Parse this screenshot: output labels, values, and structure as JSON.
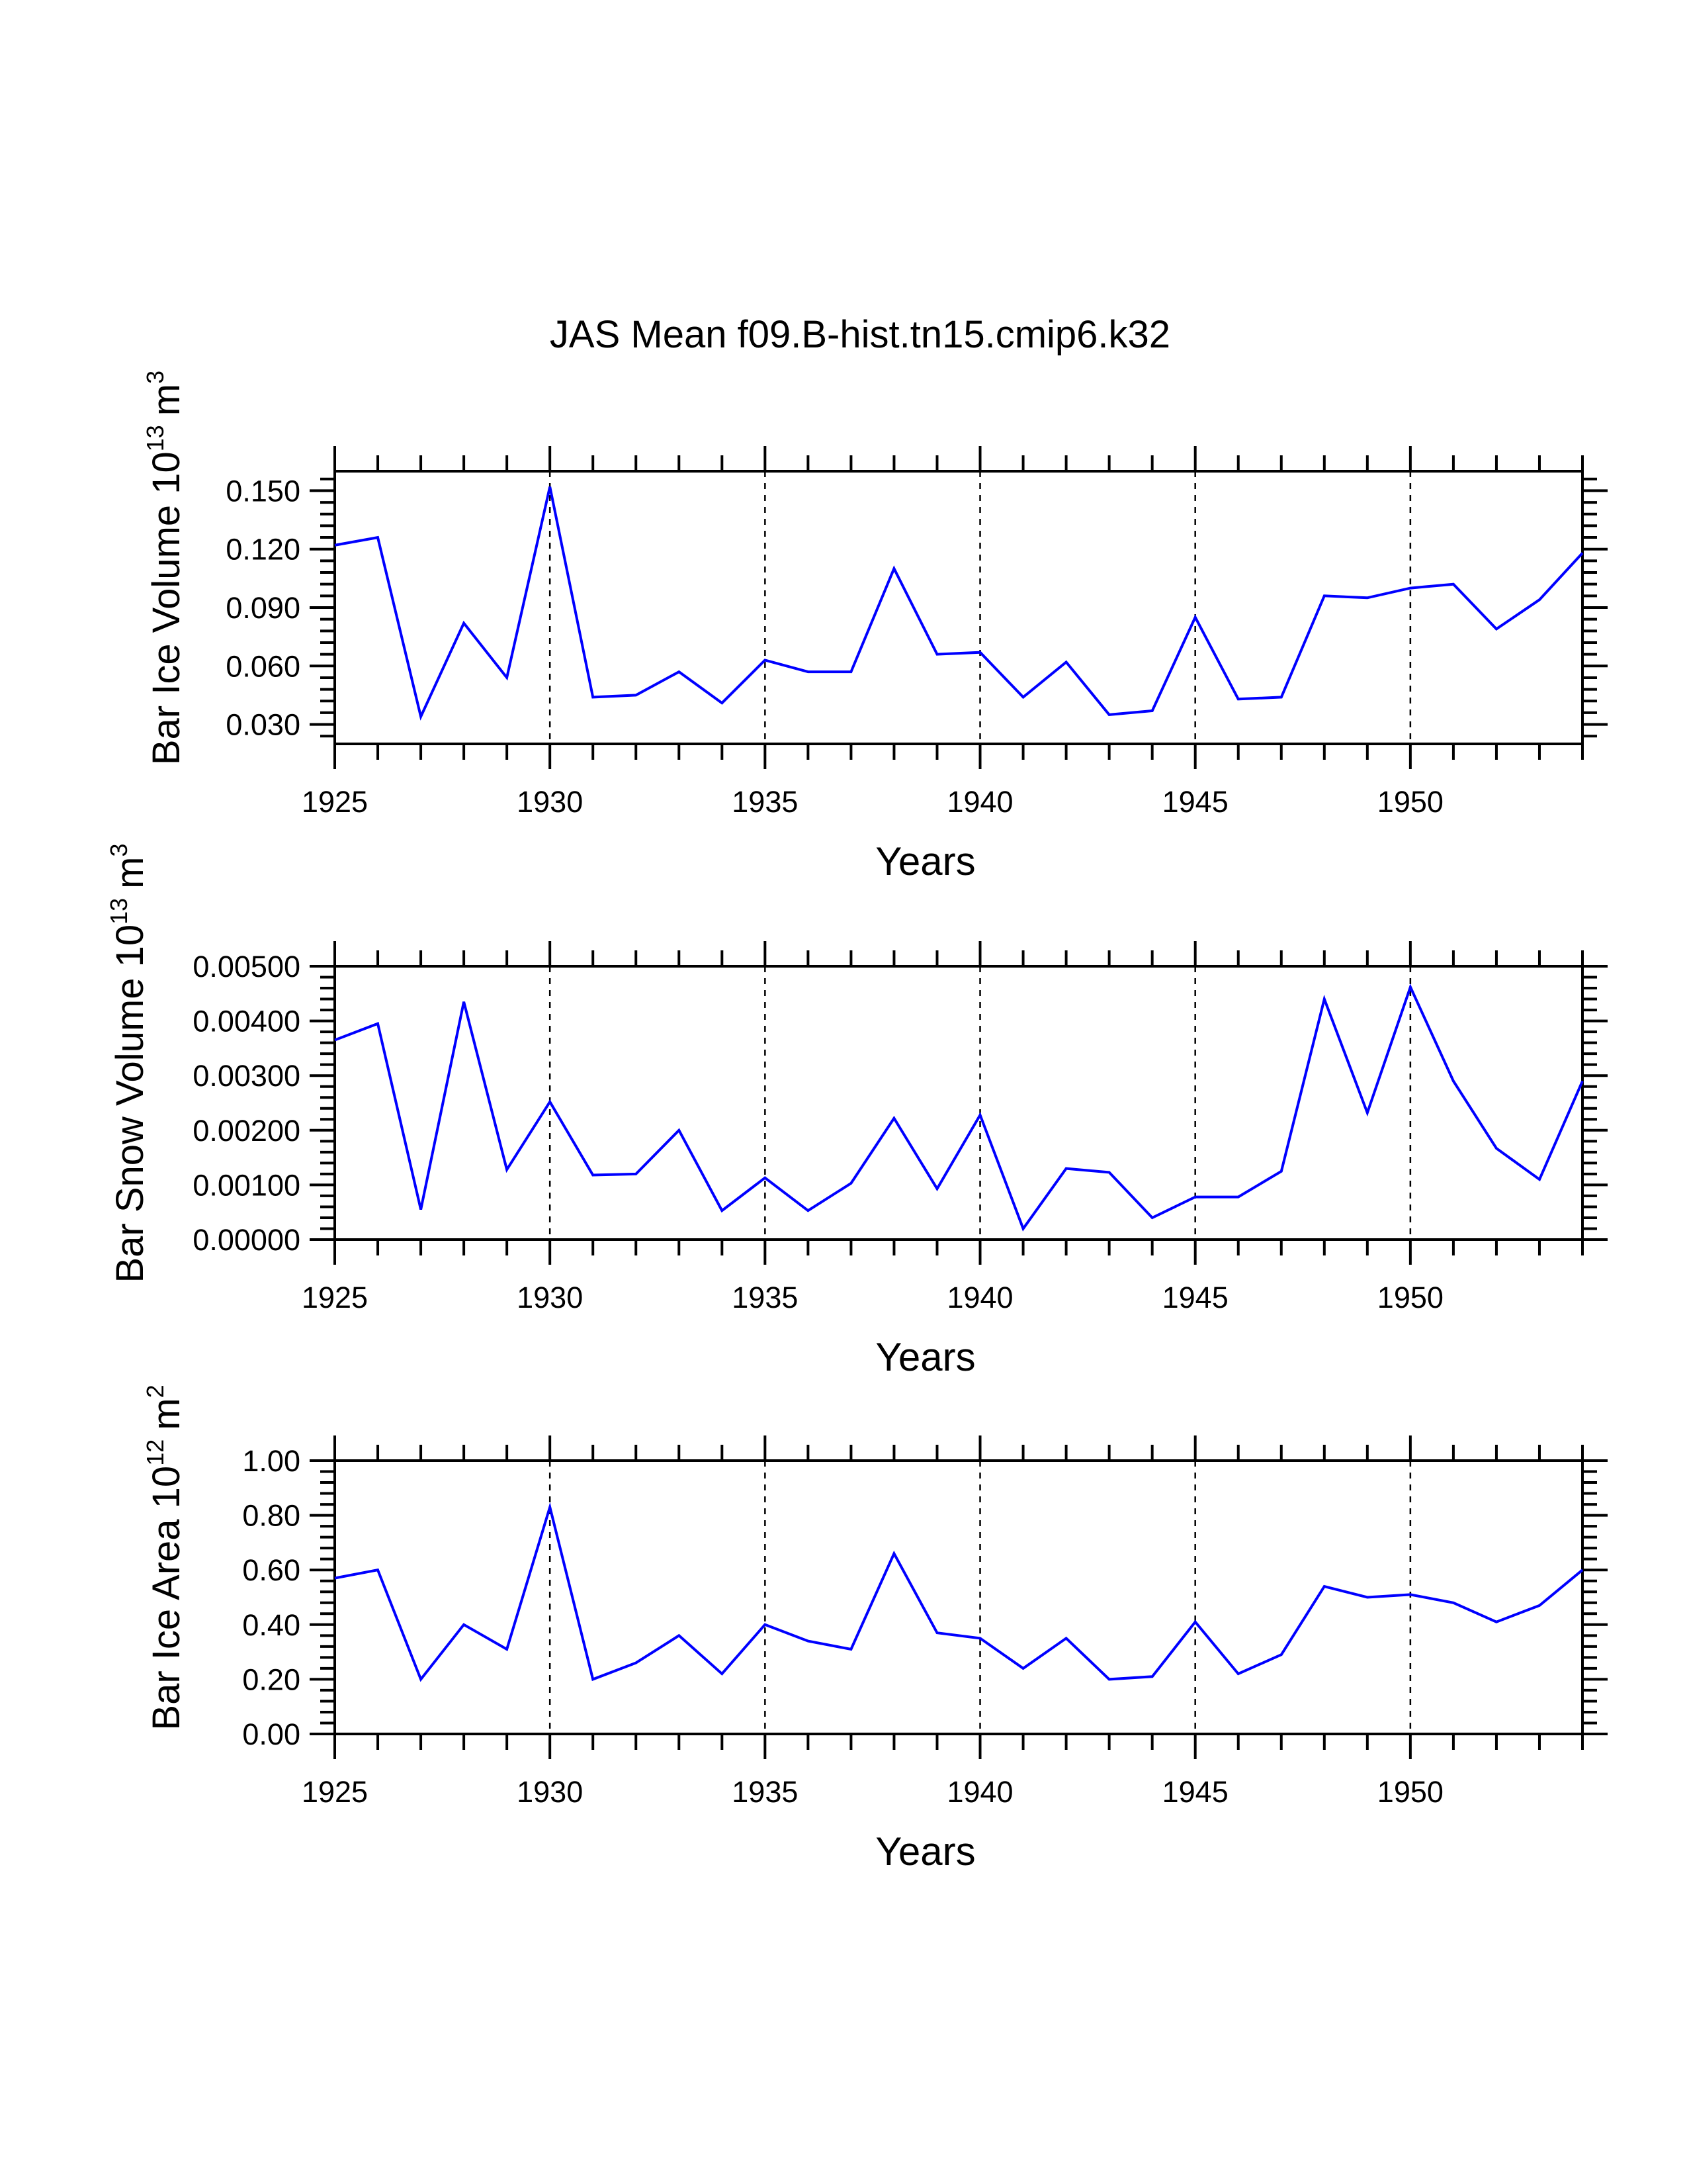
{
  "figure_title": "JAS Mean f09.B-hist.tn15.cmip6.k32",
  "chart_data": [
    {
      "type": "line",
      "title": "",
      "ylabel_text": "Bar Ice Volume 10",
      "ylabel_exp": "13",
      "ylabel_unit": "m",
      "ylabel_unit_exp": "3",
      "xlabel": "Years",
      "xlim": [
        1925,
        1954
      ],
      "ylim": [
        0.02,
        0.16
      ],
      "yticks": [
        0.03,
        0.06,
        0.09,
        0.12,
        0.15
      ],
      "ytick_labels": [
        "0.030",
        "0.060",
        "0.090",
        "0.120",
        "0.150"
      ],
      "xticks": [
        1925,
        1930,
        1935,
        1940,
        1945,
        1950
      ],
      "xtick_labels": [
        "1925",
        "1930",
        "1935",
        "1940",
        "1945",
        "1950"
      ],
      "grid_x_dashed": [
        1930,
        1935,
        1940,
        1945,
        1950
      ],
      "series": [
        {
          "name": "Bar Ice Volume",
          "color": "#0000ff",
          "x": [
            1925,
            1926,
            1927,
            1928,
            1929,
            1930,
            1931,
            1932,
            1933,
            1934,
            1935,
            1936,
            1937,
            1938,
            1939,
            1940,
            1941,
            1942,
            1943,
            1944,
            1945,
            1946,
            1947,
            1948,
            1949,
            1950,
            1951,
            1952,
            1953,
            1954
          ],
          "values": [
            0.122,
            0.126,
            0.034,
            0.082,
            0.054,
            0.152,
            0.044,
            0.045,
            0.057,
            0.041,
            0.063,
            0.057,
            0.057,
            0.11,
            0.066,
            0.067,
            0.044,
            0.062,
            0.035,
            0.037,
            0.085,
            0.043,
            0.044,
            0.096,
            0.095,
            0.1,
            0.102,
            0.079,
            0.094,
            0.118
          ]
        }
      ]
    },
    {
      "type": "line",
      "title": "",
      "ylabel_text": "Bar Snow Volume 10",
      "ylabel_exp": "13",
      "ylabel_unit": "m",
      "ylabel_unit_exp": "3",
      "xlabel": "Years",
      "xlim": [
        1925,
        1954
      ],
      "ylim": [
        0.0,
        0.005
      ],
      "yticks": [
        0.0,
        0.001,
        0.002,
        0.003,
        0.004,
        0.005
      ],
      "ytick_labels": [
        "0.00000",
        "0.00100",
        "0.00200",
        "0.00300",
        "0.00400",
        "0.00500"
      ],
      "xticks": [
        1925,
        1930,
        1935,
        1940,
        1945,
        1950
      ],
      "xtick_labels": [
        "1925",
        "1930",
        "1935",
        "1940",
        "1945",
        "1950"
      ],
      "grid_x_dashed": [
        1930,
        1935,
        1940,
        1945,
        1950
      ],
      "series": [
        {
          "name": "Bar Snow Volume",
          "color": "#0000ff",
          "x": [
            1925,
            1926,
            1927,
            1928,
            1929,
            1930,
            1931,
            1932,
            1933,
            1934,
            1935,
            1936,
            1937,
            1938,
            1939,
            1940,
            1941,
            1942,
            1943,
            1944,
            1945,
            1946,
            1947,
            1948,
            1949,
            1950,
            1951,
            1952,
            1953,
            1954
          ],
          "values": [
            0.00365,
            0.00395,
            0.00055,
            0.00435,
            0.00128,
            0.00252,
            0.00118,
            0.0012,
            0.002,
            0.00053,
            0.00113,
            0.00053,
            0.00103,
            0.00222,
            0.00093,
            0.00228,
            0.0002,
            0.0013,
            0.00123,
            0.0004,
            0.00078,
            0.00078,
            0.00125,
            0.0044,
            0.00232,
            0.00462,
            0.0029,
            0.00167,
            0.0011,
            0.0029
          ]
        }
      ]
    },
    {
      "type": "line",
      "title": "",
      "ylabel_text": "Bar Ice Area 10",
      "ylabel_exp": "12",
      "ylabel_unit": "m",
      "ylabel_unit_exp": "2",
      "xlabel": "Years",
      "xlim": [
        1925,
        1954
      ],
      "ylim": [
        0.0,
        1.0
      ],
      "yticks": [
        0.0,
        0.2,
        0.4,
        0.6,
        0.8,
        1.0
      ],
      "ytick_labels": [
        "0.00",
        "0.20",
        "0.40",
        "0.60",
        "0.80",
        "1.00"
      ],
      "xticks": [
        1925,
        1930,
        1935,
        1940,
        1945,
        1950
      ],
      "xtick_labels": [
        "1925",
        "1930",
        "1935",
        "1940",
        "1945",
        "1950"
      ],
      "grid_x_dashed": [
        1930,
        1935,
        1940,
        1945,
        1950
      ],
      "series": [
        {
          "name": "Bar Ice Area",
          "color": "#0000ff",
          "x": [
            1925,
            1926,
            1927,
            1928,
            1929,
            1930,
            1931,
            1932,
            1933,
            1934,
            1935,
            1936,
            1937,
            1938,
            1939,
            1940,
            1941,
            1942,
            1943,
            1944,
            1945,
            1946,
            1947,
            1948,
            1949,
            1950,
            1951,
            1952,
            1953,
            1954
          ],
          "values": [
            0.57,
            0.6,
            0.2,
            0.4,
            0.31,
            0.83,
            0.2,
            0.26,
            0.36,
            0.22,
            0.4,
            0.34,
            0.31,
            0.66,
            0.37,
            0.35,
            0.24,
            0.35,
            0.2,
            0.21,
            0.41,
            0.22,
            0.29,
            0.54,
            0.5,
            0.51,
            0.48,
            0.41,
            0.47,
            0.6
          ]
        }
      ]
    }
  ]
}
